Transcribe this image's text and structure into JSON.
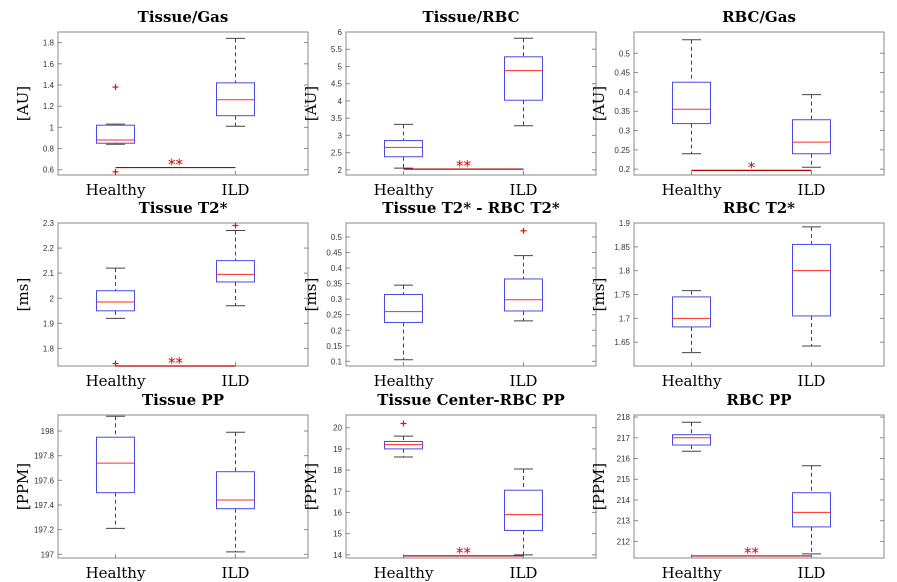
{
  "colors": {
    "box": "#4a4ae6",
    "median": "#ff2a2a",
    "whisker": "#444444",
    "outlier": "#ff0000",
    "sig_line": "#b30000",
    "axes": "#888888"
  },
  "chart_data": [
    {
      "type": "box",
      "title": "Tissue/Gas",
      "ylabel": "[AU]",
      "ylim": [
        0.55,
        1.9
      ],
      "yticks": [
        0.6,
        0.8,
        1.0,
        1.2,
        1.4,
        1.6,
        1.8
      ],
      "ytick_labels": [
        "0.6",
        "0.8",
        "1",
        "1.2",
        "1.4",
        "1.6",
        "1.8"
      ],
      "categories": [
        "Healthy",
        "ILD"
      ],
      "boxes": [
        {
          "min": 0.84,
          "q1": 0.85,
          "median": 0.88,
          "q3": 1.02,
          "max": 1.03,
          "outliers": [
            1.38,
            0.58
          ]
        },
        {
          "min": 1.01,
          "q1": 1.11,
          "median": 1.26,
          "q3": 1.42,
          "max": 1.84,
          "outliers": []
        }
      ],
      "significance": {
        "label": "**",
        "y": 0.62
      }
    },
    {
      "type": "box",
      "title": "Tissue/RBC",
      "ylabel": "[AU]",
      "ylim": [
        1.85,
        6.0
      ],
      "yticks": [
        2,
        2.5,
        3,
        3.5,
        4,
        4.5,
        5,
        5.5,
        6
      ],
      "ytick_labels": [
        "2",
        "2.5",
        "3",
        "3.5",
        "4",
        "4.5",
        "5",
        "5.5",
        "6"
      ],
      "categories": [
        "Healthy",
        "ILD"
      ],
      "boxes": [
        {
          "min": 2.05,
          "q1": 2.38,
          "median": 2.65,
          "q3": 2.85,
          "max": 3.32,
          "outliers": []
        },
        {
          "min": 3.28,
          "q1": 4.02,
          "median": 4.88,
          "q3": 5.28,
          "max": 5.82,
          "outliers": []
        }
      ],
      "significance": {
        "label": "**",
        "y": 2.02
      }
    },
    {
      "type": "box",
      "title": "RBC/Gas",
      "ylabel": "[AU]",
      "ylim": [
        0.185,
        0.555
      ],
      "yticks": [
        0.2,
        0.25,
        0.3,
        0.35,
        0.4,
        0.45,
        0.5
      ],
      "ytick_labels": [
        "0.2",
        "0.25",
        "0.3",
        "0.35",
        "0.4",
        "0.45",
        "0.5"
      ],
      "categories": [
        "Healthy",
        "ILD"
      ],
      "boxes": [
        {
          "min": 0.24,
          "q1": 0.318,
          "median": 0.355,
          "q3": 0.425,
          "max": 0.535,
          "outliers": []
        },
        {
          "min": 0.205,
          "q1": 0.24,
          "median": 0.27,
          "q3": 0.328,
          "max": 0.393,
          "outliers": []
        }
      ],
      "significance": {
        "label": "*",
        "y": 0.197
      }
    },
    {
      "type": "box",
      "title": "Tissue T2*",
      "ylabel": "[ms]",
      "ylim": [
        1.73,
        2.3
      ],
      "yticks": [
        1.8,
        1.9,
        2.0,
        2.1,
        2.2,
        2.3
      ],
      "ytick_labels": [
        "1.8",
        "1.9",
        "2",
        "2.1",
        "2.2",
        "2.3"
      ],
      "categories": [
        "Healthy",
        "ILD"
      ],
      "boxes": [
        {
          "min": 1.92,
          "q1": 1.95,
          "median": 1.985,
          "q3": 2.03,
          "max": 2.12,
          "outliers": [
            1.74
          ]
        },
        {
          "min": 1.97,
          "q1": 2.065,
          "median": 2.095,
          "q3": 2.15,
          "max": 2.27,
          "outliers": [
            2.29
          ]
        }
      ],
      "significance": {
        "label": "**",
        "y": 1.73
      }
    },
    {
      "type": "box",
      "title": "Tissue T2* - RBC T2*",
      "ylabel": "[ms]",
      "ylim": [
        0.085,
        0.545
      ],
      "yticks": [
        0.1,
        0.15,
        0.2,
        0.25,
        0.3,
        0.35,
        0.4,
        0.45,
        0.5
      ],
      "ytick_labels": [
        "0.1",
        "0.15",
        "0.2",
        "0.25",
        "0.3",
        "0.35",
        "0.4",
        "0.45",
        "0.5"
      ],
      "categories": [
        "Healthy",
        "ILD"
      ],
      "boxes": [
        {
          "min": 0.105,
          "q1": 0.225,
          "median": 0.26,
          "q3": 0.315,
          "max": 0.345,
          "outliers": []
        },
        {
          "min": 0.23,
          "q1": 0.262,
          "median": 0.298,
          "q3": 0.365,
          "max": 0.44,
          "outliers": [
            0.52
          ]
        }
      ],
      "significance": null
    },
    {
      "type": "box",
      "title": "RBC T2*",
      "ylabel": "[ms]",
      "ylim": [
        1.6,
        1.9
      ],
      "yticks": [
        1.65,
        1.7,
        1.75,
        1.8,
        1.85,
        1.9
      ],
      "ytick_labels": [
        "1.65",
        "1.7",
        "1.75",
        "1.8",
        "1.85",
        "1.9"
      ],
      "categories": [
        "Healthy",
        "ILD"
      ],
      "boxes": [
        {
          "min": 1.628,
          "q1": 1.682,
          "median": 1.7,
          "q3": 1.745,
          "max": 1.758,
          "outliers": []
        },
        {
          "min": 1.642,
          "q1": 1.705,
          "median": 1.8,
          "q3": 1.855,
          "max": 1.892,
          "outliers": []
        }
      ],
      "significance": null
    },
    {
      "type": "box",
      "title": "Tissue PP",
      "ylabel": "[PPM]",
      "ylim": [
        196.97,
        198.13
      ],
      "yticks": [
        197,
        197.2,
        197.4,
        197.6,
        197.8,
        198
      ],
      "ytick_labels": [
        "197",
        "197.2",
        "197.4",
        "197.6",
        "197.8",
        "198"
      ],
      "categories": [
        "Healthy",
        "ILD"
      ],
      "boxes": [
        {
          "min": 197.21,
          "q1": 197.5,
          "median": 197.74,
          "q3": 197.95,
          "max": 198.12,
          "outliers": []
        },
        {
          "min": 197.02,
          "q1": 197.37,
          "median": 197.44,
          "q3": 197.67,
          "max": 197.99,
          "outliers": []
        }
      ],
      "significance": null
    },
    {
      "type": "box",
      "title": "Tissue Center-RBC PP",
      "ylabel": "[PPM]",
      "ylim": [
        13.85,
        20.6
      ],
      "yticks": [
        14,
        15,
        16,
        17,
        18,
        19,
        20
      ],
      "ytick_labels": [
        "14",
        "15",
        "16",
        "17",
        "18",
        "19",
        "20"
      ],
      "categories": [
        "Healthy",
        "ILD"
      ],
      "boxes": [
        {
          "min": 18.62,
          "q1": 19.0,
          "median": 19.2,
          "q3": 19.35,
          "max": 19.6,
          "outliers": [
            20.2
          ]
        },
        {
          "min": 14.0,
          "q1": 15.15,
          "median": 15.9,
          "q3": 17.05,
          "max": 18.05,
          "outliers": []
        }
      ],
      "significance": {
        "label": "**",
        "y": 13.95
      }
    },
    {
      "type": "box",
      "title": "RBC PP",
      "ylabel": "[PPM]",
      "ylim": [
        211.2,
        218.1
      ],
      "yticks": [
        212,
        213,
        214,
        215,
        216,
        217,
        218
      ],
      "ytick_labels": [
        "212",
        "213",
        "214",
        "215",
        "216",
        "217",
        "218"
      ],
      "categories": [
        "Healthy",
        "ILD"
      ],
      "boxes": [
        {
          "min": 216.35,
          "q1": 216.65,
          "median": 217.0,
          "q3": 217.15,
          "max": 217.75,
          "outliers": []
        },
        {
          "min": 211.4,
          "q1": 212.7,
          "median": 213.4,
          "q3": 214.35,
          "max": 215.65,
          "outliers": []
        }
      ],
      "significance": {
        "label": "**",
        "y": 211.3
      }
    }
  ]
}
